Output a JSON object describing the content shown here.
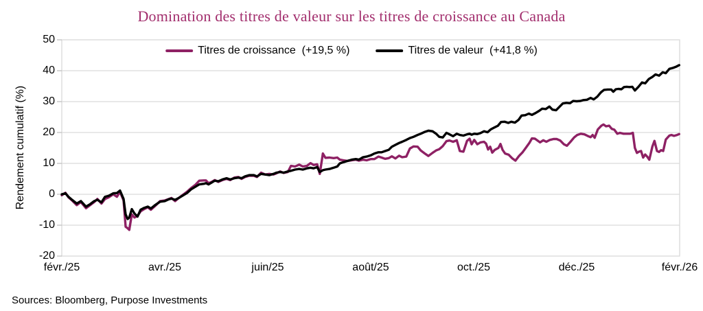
{
  "page": {
    "source_note": "Sources: Bloomberg, Purpose Investments"
  },
  "colors": {
    "grid": "#d9d9d9",
    "axis": "#bfbfbf",
    "title": "#a22e6d",
    "growth_line": "#8e2164",
    "value_line": "#000000"
  },
  "chart_data": {
    "type": "line",
    "title": "Domination des titres de valeur sur les titres de croissance au Canada",
    "ylabel": "Rendement cumulatif (%)",
    "ylim": [
      -20,
      50
    ],
    "yticks": [
      50,
      40,
      30,
      20,
      10,
      0,
      -10,
      -20
    ],
    "x_unit": "months since févr. 2025",
    "xlim": [
      0,
      12
    ],
    "xticks": [
      {
        "pos": 0,
        "label": "févr./25"
      },
      {
        "pos": 2,
        "label": "avr./25"
      },
      {
        "pos": 4,
        "label": "juin/25"
      },
      {
        "pos": 6,
        "label": "août/25"
      },
      {
        "pos": 8,
        "label": "oct./25"
      },
      {
        "pos": 10,
        "label": "déc./25"
      },
      {
        "pos": 12,
        "label": "févr./26"
      }
    ],
    "grid": "horizontal",
    "legend_position": "top-center",
    "series": [
      {
        "slug": "growth",
        "name": "Titres de croissance",
        "change_label": "(+19,5 %)",
        "color": "#8e2164",
        "x": [
          0,
          0.07,
          0.13,
          0.2,
          0.29,
          0.37,
          0.47,
          0.55,
          0.63,
          0.69,
          0.77,
          0.84,
          0.91,
          1,
          1.07,
          1.13,
          1.2,
          1.24,
          1.28,
          1.31,
          1.36,
          1.41,
          1.47,
          1.53,
          1.6,
          1.67,
          1.73,
          1.81,
          1.91,
          2,
          2.08,
          2.13,
          2.2,
          2.27,
          2.35,
          2.43,
          2.51,
          2.59,
          2.67,
          2.76,
          2.8,
          2.85,
          2.91,
          2.97,
          3.04,
          3.12,
          3.2,
          3.27,
          3.35,
          3.43,
          3.49,
          3.56,
          3.64,
          3.73,
          3.79,
          3.87,
          3.95,
          4.03,
          4.11,
          4.17,
          4.24,
          4.31,
          4.39,
          4.45,
          4.53,
          4.61,
          4.68,
          4.76,
          4.83,
          4.89,
          4.96,
          5.01,
          5.07,
          5.12,
          5.2,
          5.28,
          5.35,
          5.4,
          5.47,
          5.55,
          5.63,
          5.71,
          5.77,
          5.85,
          5.92,
          6,
          6.07,
          6.15,
          6.21,
          6.28,
          6.35,
          6.41,
          6.48,
          6.55,
          6.61,
          6.69,
          6.76,
          6.83,
          6.91,
          6.97,
          7.05,
          7.12,
          7.2,
          7.27,
          7.33,
          7.4,
          7.47,
          7.53,
          7.6,
          7.67,
          7.73,
          7.8,
          7.87,
          7.92,
          7.96,
          8.01,
          8.07,
          8.13,
          8.2,
          8.24,
          8.28,
          8.32,
          8.36,
          8.41,
          8.48,
          8.52,
          8.56,
          8.61,
          8.68,
          8.75,
          8.81,
          8.88,
          8.95,
          9.01,
          9.08,
          9.13,
          9.19,
          9.24,
          9.29,
          9.35,
          9.41,
          9.48,
          9.55,
          9.61,
          9.68,
          9.75,
          9.81,
          9.88,
          9.95,
          10.01,
          10.08,
          10.15,
          10.21,
          10.27,
          10.31,
          10.35,
          10.41,
          10.48,
          10.52,
          10.57,
          10.63,
          10.68,
          10.73,
          10.79,
          10.84,
          10.91,
          10.97,
          11.04,
          11.09,
          11.13,
          11.17,
          11.21,
          11.25,
          11.29,
          11.33,
          11.37,
          11.41,
          11.47,
          11.51,
          11.56,
          11.6,
          11.64,
          11.68,
          11.73,
          11.8,
          11.84,
          11.89,
          11.95,
          11.99
        ],
        "values": [
          -0.3,
          0.5,
          -1,
          -2,
          -3.5,
          -2.5,
          -4.5,
          -3.5,
          -2.5,
          -1.5,
          -3,
          -1.5,
          -1,
          0,
          -0.8,
          0.8,
          -2,
          -10.5,
          -11,
          -11.5,
          -6.5,
          -7.5,
          -7,
          -5.5,
          -4.8,
          -4.2,
          -5,
          -3.8,
          -2.2,
          -2,
          -1.5,
          -1.2,
          -2.2,
          -1.2,
          -0.2,
          0.8,
          2,
          3,
          4.4,
          4.5,
          4.5,
          3.6,
          4,
          4.6,
          4,
          4.6,
          5,
          4.6,
          5.4,
          5.6,
          5,
          5.6,
          6,
          6,
          5.6,
          7,
          6.4,
          6.6,
          6.4,
          6.8,
          7.4,
          6.9,
          7.2,
          9.2,
          9,
          9.6,
          9,
          9.2,
          10.1,
          9.5,
          9.7,
          6.6,
          13.2,
          11.8,
          11.9,
          11.7,
          11.9,
          11.2,
          11,
          10.8,
          11,
          11.2,
          10.9,
          11.2,
          11,
          11.4,
          11.4,
          12.2,
          11.9,
          11.5,
          11.7,
          12.3,
          11.6,
          12.5,
          12,
          12.2,
          14.8,
          15.5,
          15.4,
          14.2,
          13.2,
          12.4,
          13.4,
          14.2,
          14.6,
          15.6,
          17.2,
          17.4,
          17,
          17.5,
          14,
          13.8,
          17.3,
          18,
          16.2,
          17.6,
          16.2,
          16.8,
          17,
          16.4,
          14.5,
          15.4,
          13.5,
          14.4,
          15,
          16.3,
          14.4,
          13.2,
          12.8,
          11.6,
          10.9,
          12.4,
          13.6,
          15,
          16.6,
          18.1,
          18,
          17.4,
          16.8,
          17.5,
          17,
          17.6,
          17.9,
          17.9,
          17.4,
          16.2,
          15.7,
          17,
          18.4,
          19.2,
          19.6,
          19.4,
          18.9,
          18.5,
          19.2,
          18.3,
          21,
          22.2,
          22.6,
          22,
          22.2,
          21.2,
          20.9,
          19.6,
          19.9,
          19.6,
          19.6,
          19.6,
          19.9,
          15,
          13.4,
          13.8,
          14,
          11.9,
          12.9,
          12.2,
          11.2,
          15.5,
          17.3,
          14,
          13.7,
          14.3,
          14,
          17.7,
          19,
          19.2,
          18.9,
          19.2,
          19.5
        ]
      },
      {
        "slug": "value",
        "name": "Titres de valeur",
        "change_label": "(+41,8 %)",
        "color": "#000000",
        "x": [
          0,
          0.07,
          0.13,
          0.2,
          0.29,
          0.37,
          0.47,
          0.55,
          0.63,
          0.69,
          0.77,
          0.84,
          0.91,
          1,
          1.07,
          1.13,
          1.2,
          1.24,
          1.28,
          1.31,
          1.36,
          1.41,
          1.47,
          1.53,
          1.6,
          1.67,
          1.73,
          1.81,
          1.91,
          2,
          2.08,
          2.13,
          2.2,
          2.27,
          2.35,
          2.43,
          2.51,
          2.59,
          2.67,
          2.76,
          2.8,
          2.85,
          2.91,
          2.97,
          3.04,
          3.12,
          3.2,
          3.27,
          3.35,
          3.43,
          3.49,
          3.56,
          3.64,
          3.73,
          3.79,
          3.87,
          3.95,
          4.03,
          4.11,
          4.17,
          4.24,
          4.31,
          4.39,
          4.45,
          4.53,
          4.61,
          4.68,
          4.76,
          4.83,
          4.89,
          4.96,
          5.01,
          5.07,
          5.12,
          5.2,
          5.28,
          5.35,
          5.4,
          5.47,
          5.55,
          5.63,
          5.71,
          5.77,
          5.85,
          5.92,
          6,
          6.07,
          6.15,
          6.21,
          6.28,
          6.35,
          6.41,
          6.48,
          6.55,
          6.61,
          6.69,
          6.76,
          6.83,
          6.91,
          6.97,
          7.05,
          7.12,
          7.2,
          7.27,
          7.33,
          7.4,
          7.47,
          7.53,
          7.6,
          7.67,
          7.73,
          7.8,
          7.87,
          7.92,
          7.96,
          8.01,
          8.07,
          8.13,
          8.2,
          8.27,
          8.33,
          8.4,
          8.47,
          8.53,
          8.6,
          8.67,
          8.73,
          8.8,
          8.87,
          8.93,
          9,
          9.07,
          9.13,
          9.2,
          9.27,
          9.33,
          9.4,
          9.47,
          9.53,
          9.6,
          9.67,
          9.73,
          9.8,
          9.87,
          9.93,
          10,
          10.07,
          10.13,
          10.2,
          10.27,
          10.33,
          10.4,
          10.47,
          10.53,
          10.6,
          10.67,
          10.71,
          10.76,
          10.81,
          10.87,
          10.92,
          10.97,
          11.03,
          11.08,
          11.13,
          11.2,
          11.27,
          11.33,
          11.4,
          11.47,
          11.53,
          11.6,
          11.67,
          11.73,
          11.8,
          11.87,
          11.93,
          11.99
        ],
        "values": [
          0,
          0.3,
          -0.8,
          -1.8,
          -3,
          -2.2,
          -4,
          -3.2,
          -2.2,
          -1.8,
          -2.6,
          -0.8,
          -0.5,
          0.3,
          0.4,
          1.2,
          -1.5,
          -6.5,
          -8,
          -7.5,
          -4.8,
          -6.2,
          -7.2,
          -5,
          -4.4,
          -4,
          -4.6,
          -3.5,
          -2.4,
          -2.2,
          -1.6,
          -1.4,
          -1.8,
          -1.2,
          -0.4,
          0.4,
          1.6,
          2.4,
          3.2,
          3.4,
          3.6,
          3.2,
          3.8,
          4.4,
          4.2,
          4.8,
          5.2,
          4.8,
          5.2,
          5.4,
          5.2,
          5.8,
          6.2,
          6.2,
          5.8,
          6.6,
          6.4,
          6.2,
          6.6,
          7,
          7.2,
          7,
          7.4,
          7.6,
          8,
          8.2,
          8,
          8.4,
          8.6,
          8.4,
          8.8,
          7.2,
          7.8,
          8,
          8.2,
          8.6,
          9,
          10,
          10.4,
          10.8,
          11.2,
          11.4,
          11.2,
          12,
          12.2,
          12.6,
          13.2,
          13.6,
          13.6,
          14,
          14.4,
          15.4,
          16,
          16.6,
          17,
          17.6,
          18.2,
          18.6,
          19.2,
          19.6,
          20.2,
          20.6,
          20.4,
          19.6,
          18.6,
          18.4,
          19.9,
          19.4,
          18.8,
          19.6,
          19.2,
          19,
          19.4,
          19.6,
          19.3,
          19.6,
          19.5,
          19.8,
          20.4,
          20.1,
          21,
          21.6,
          22.2,
          23.4,
          23.5,
          23.1,
          23.5,
          23.2,
          24.1,
          25.5,
          25.6,
          26.1,
          25.7,
          26.3,
          27,
          27.7,
          27.6,
          28.4,
          27.4,
          27.2,
          28.4,
          29.4,
          29.6,
          29.5,
          30.2,
          30.1,
          30.2,
          30.5,
          30.6,
          31.2,
          30.7,
          31.6,
          33,
          33.8,
          33.9,
          33.9,
          33.2,
          34,
          34.1,
          34,
          34.7,
          34.8,
          34.7,
          34.8,
          33.6,
          34.8,
          36.2,
          35.9,
          37.3,
          38,
          38.8,
          38.4,
          39.5,
          39.2,
          40.6,
          40.9,
          41.3,
          41.8
        ]
      }
    ]
  }
}
